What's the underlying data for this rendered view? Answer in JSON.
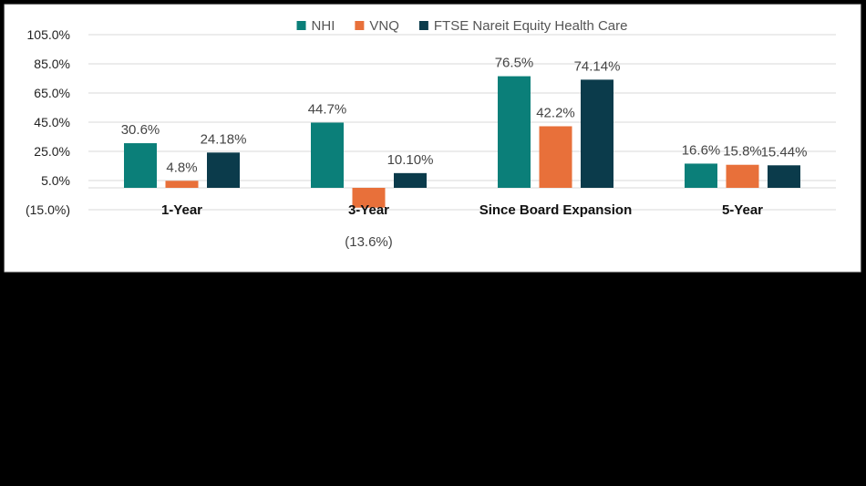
{
  "chart_data": {
    "type": "bar",
    "categories": [
      "1-Year",
      "3-Year",
      "Since Board Expansion",
      "5-Year"
    ],
    "series": [
      {
        "name": "NHI",
        "values": [
          30.6,
          44.7,
          76.5,
          16.6
        ],
        "labels": [
          "30.6%",
          "44.7%",
          "76.5%",
          "16.6%"
        ],
        "color": "#0B7F79"
      },
      {
        "name": "VNQ",
        "values": [
          4.8,
          -13.6,
          42.2,
          15.8
        ],
        "labels": [
          "4.8%",
          "(13.6%)",
          "42.2%",
          "15.8%"
        ],
        "color": "#E8703A"
      },
      {
        "name": "FTSE Nareit Equity Health Care",
        "values": [
          24.18,
          10.1,
          74.14,
          15.44
        ],
        "labels": [
          "24.18%",
          "10.10%",
          "74.14%",
          "15.44%"
        ],
        "color": "#0B3B4B"
      }
    ],
    "y_ticks": [
      105,
      85,
      65,
      45,
      25,
      5,
      -15
    ],
    "y_tick_labels": [
      "105.0%",
      "85.0%",
      "65.0%",
      "45.0%",
      "25.0%",
      "5.0%",
      "(15.0%)"
    ],
    "ylim": [
      -15,
      105
    ],
    "grid": true,
    "legend": "top-center"
  },
  "colors": {
    "background": "#000000",
    "panel": "#FFFFFF",
    "panel_border": "#D9D9D9",
    "gridline": "#D9D9D9"
  }
}
